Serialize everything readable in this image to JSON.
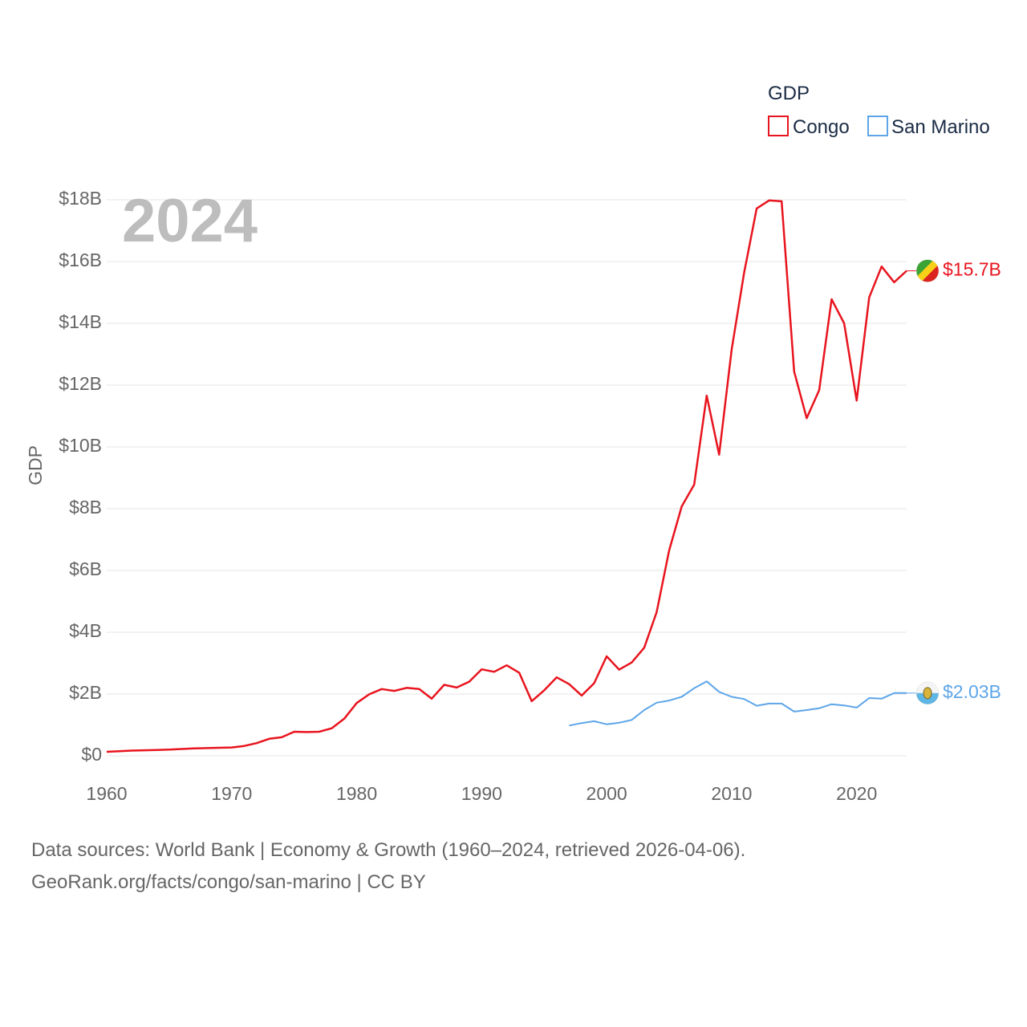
{
  "chart_data": {
    "type": "line",
    "year_label": "2024",
    "ylabel": "GDP",
    "ylim": [
      0,
      18000000000
    ],
    "xlim": [
      1960,
      2024
    ],
    "y_ticks": [
      {
        "value": 0,
        "label": "$0"
      },
      {
        "value": 2000000000,
        "label": "$2B"
      },
      {
        "value": 4000000000,
        "label": "$4B"
      },
      {
        "value": 6000000000,
        "label": "$6B"
      },
      {
        "value": 8000000000,
        "label": "$8B"
      },
      {
        "value": 10000000000,
        "label": "$10B"
      },
      {
        "value": 12000000000,
        "label": "$12B"
      },
      {
        "value": 14000000000,
        "label": "$14B"
      },
      {
        "value": 16000000000,
        "label": "$16B"
      },
      {
        "value": 18000000000,
        "label": "$18B"
      }
    ],
    "x_ticks": [
      1960,
      1970,
      1980,
      1990,
      2000,
      2010,
      2020
    ],
    "legend": {
      "title": "GDP",
      "position": "top-right"
    },
    "series": [
      {
        "name": "Congo",
        "color": "#e8141e",
        "end_label": "$15.7B",
        "flag_icon": "congo-flag-icon",
        "x": [
          1960,
          1961,
          1962,
          1963,
          1964,
          1965,
          1966,
          1967,
          1968,
          1969,
          1970,
          1971,
          1972,
          1973,
          1974,
          1975,
          1976,
          1977,
          1978,
          1979,
          1980,
          1981,
          1982,
          1983,
          1984,
          1985,
          1986,
          1987,
          1988,
          1989,
          1990,
          1991,
          1992,
          1993,
          1994,
          1995,
          1996,
          1997,
          1998,
          1999,
          2000,
          2001,
          2002,
          2003,
          2004,
          2005,
          2006,
          2007,
          2008,
          2009,
          2010,
          2011,
          2012,
          2013,
          2014,
          2015,
          2016,
          2017,
          2018,
          2019,
          2020,
          2021,
          2022,
          2023,
          2024
        ],
        "values": [
          0.13,
          0.15,
          0.17,
          0.18,
          0.19,
          0.2,
          0.22,
          0.24,
          0.25,
          0.26,
          0.27,
          0.32,
          0.41,
          0.55,
          0.6,
          0.78,
          0.77,
          0.78,
          0.89,
          1.2,
          1.71,
          1.99,
          2.16,
          2.1,
          2.2,
          2.16,
          1.85,
          2.3,
          2.21,
          2.4,
          2.8,
          2.72,
          2.93,
          2.69,
          1.77,
          2.12,
          2.54,
          2.32,
          1.95,
          2.35,
          3.22,
          2.79,
          3.02,
          3.5,
          4.65,
          6.65,
          8.07,
          8.78,
          11.66,
          9.75,
          13.15,
          15.65,
          17.72,
          17.98,
          17.95,
          12.44,
          10.93,
          11.84,
          14.78,
          14.0,
          11.5,
          14.84,
          15.84,
          15.33,
          15.7
        ],
        "values_unit": "billion USD"
      },
      {
        "name": "San Marino",
        "color": "#5da5e8",
        "end_label": "$2.03B",
        "flag_icon": "san-marino-flag-icon",
        "x": [
          1997,
          1998,
          1999,
          2000,
          2001,
          2002,
          2003,
          2004,
          2005,
          2006,
          2007,
          2008,
          2009,
          2010,
          2011,
          2012,
          2013,
          2014,
          2015,
          2016,
          2017,
          2018,
          2019,
          2020,
          2021,
          2022,
          2023,
          2024
        ],
        "values": [
          0.98,
          1.06,
          1.12,
          1.02,
          1.07,
          1.16,
          1.48,
          1.72,
          1.79,
          1.91,
          2.19,
          2.41,
          2.07,
          1.91,
          1.84,
          1.62,
          1.69,
          1.69,
          1.43,
          1.48,
          1.54,
          1.67,
          1.63,
          1.56,
          1.87,
          1.85,
          2.03,
          2.03
        ],
        "values_unit": "billion USD"
      }
    ]
  },
  "source": {
    "line1": "Data sources: World Bank | Economy & Growth (1960–2024, retrieved 2026-04-06).",
    "line2": "GeoRank.org/facts/congo/san-marino | CC BY"
  }
}
